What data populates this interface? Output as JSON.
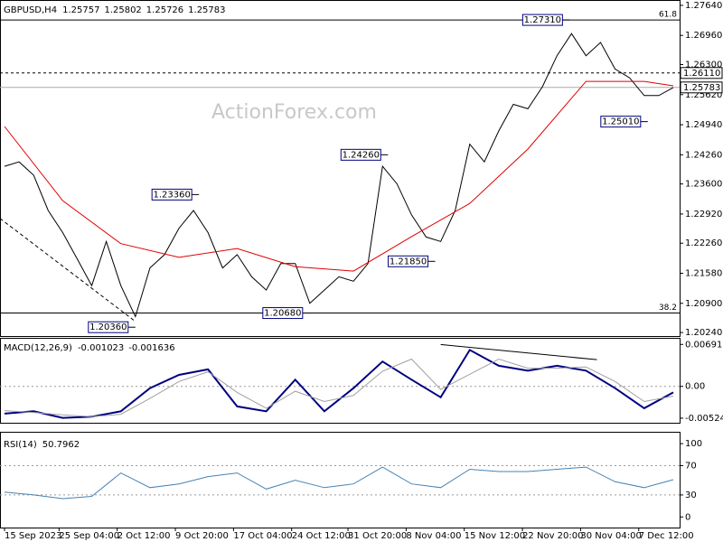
{
  "chart_data": [
    {
      "type": "line",
      "title": "GBPUSD,H4",
      "header_values": [
        1.25757,
        1.25802,
        1.25726,
        1.25783
      ],
      "watermark": "ActionForex.com",
      "xlim": [
        -2.5,
        371.5
      ],
      "x": [
        0,
        8,
        16,
        24,
        32,
        40,
        48,
        56,
        64,
        72,
        80,
        88,
        96,
        104,
        112,
        120,
        128,
        136,
        144,
        152,
        160,
        168,
        176,
        184,
        192,
        200,
        208,
        216,
        224,
        232,
        240,
        248,
        256,
        264,
        272,
        280,
        288,
        296,
        304,
        312,
        320,
        328,
        336,
        344,
        352,
        360,
        368
      ],
      "series": [
        {
          "color": "#000000",
          "width": 1,
          "values": [
            1.24,
            1.241,
            1.238,
            1.23,
            1.225,
            1.219,
            1.213,
            1.223,
            1.213,
            1.206,
            1.217,
            1.22,
            1.226,
            1.23,
            1.225,
            1.217,
            1.22,
            1.215,
            1.212,
            1.218,
            1.218,
            1.209,
            1.212,
            1.215,
            1.214,
            1.218,
            1.24,
            1.236,
            1.229,
            1.224,
            1.223,
            1.23,
            1.245,
            1.241,
            1.248,
            1.254,
            1.253,
            1.258,
            1.265,
            1.27,
            1.265,
            1.268,
            1.262,
            1.26,
            1.256,
            1.256,
            1.2578
          ]
        },
        {
          "color": "#e00000",
          "width": 1,
          "x": [
            0,
            32,
            64,
            96,
            128,
            160,
            192,
            224,
            256,
            288,
            320,
            352,
            368
          ],
          "values": [
            1.249,
            1.2322,
            1.2225,
            1.2194,
            1.2214,
            1.2173,
            1.2163,
            1.2241,
            1.2316,
            1.2439,
            1.2592,
            1.2592,
            1.2582
          ]
        }
      ],
      "ylim": [
        1.2016,
        1.2772
      ],
      "yticks": [
        {
          "value": 1.2764,
          "label": "1.27640"
        },
        {
          "value": 1.2696,
          "label": "1.26960"
        },
        {
          "value": 1.263,
          "label": "1.26300"
        },
        {
          "value": 1.2562,
          "label": "1.25620"
        },
        {
          "value": 1.2494,
          "label": "1.24940"
        },
        {
          "value": 1.2426,
          "label": "1.24260"
        },
        {
          "value": 1.236,
          "label": "1.23600"
        },
        {
          "value": 1.2292,
          "label": "1.22920"
        },
        {
          "value": 1.2226,
          "label": "1.22260"
        },
        {
          "value": 1.2158,
          "label": "1.21580"
        },
        {
          "value": 1.209,
          "label": "1.20900"
        },
        {
          "value": 1.2024,
          "label": "1.20240"
        }
      ],
      "fib_levels": [
        {
          "value": 1.2731,
          "fib": 61.8
        },
        {
          "value": 1.2068,
          "fib": 38.2
        }
      ],
      "price_levels": [
        {
          "value": 1.2611,
          "label": "1.26110",
          "style": "dotted"
        },
        {
          "value": 1.25783,
          "label": "1.25783",
          "style": "solid"
        }
      ],
      "annotations": [
        {
          "x": 311,
          "value": 1.2731,
          "label": "1.27310"
        },
        {
          "x": 354,
          "value": 1.2501,
          "label": "1.25010"
        },
        {
          "x": 211,
          "value": 1.2426,
          "label": "1.24260"
        },
        {
          "x": 107,
          "value": 1.2336,
          "label": "1.23360"
        },
        {
          "x": 237,
          "value": 1.2185,
          "label": "1.21850"
        },
        {
          "x": 72,
          "value": 1.2036,
          "label": "1.20360"
        },
        {
          "x": 168,
          "value": 1.2068,
          "label": "1.20680"
        }
      ],
      "trendlines": [
        {
          "x": [
            -2.5,
            72
          ],
          "values": [
            1.2282,
            1.2049
          ]
        }
      ]
    },
    {
      "type": "line",
      "title": "MACD(12,26,9)",
      "header_values": [
        -0.001023,
        -0.001636
      ],
      "x": [
        0,
        16,
        32,
        48,
        64,
        80,
        96,
        112,
        128,
        144,
        160,
        176,
        192,
        208,
        224,
        240,
        256,
        272,
        288,
        304,
        320,
        336,
        352,
        368
      ],
      "series": [
        {
          "color": "#000080",
          "width": 2,
          "values": [
            -0.0045,
            -0.0041,
            -0.0052,
            -0.005,
            -0.0041,
            -0.0003,
            0.0019,
            0.0028,
            -0.0033,
            -0.0041,
            0.0011,
            -0.0041,
            -0.0003,
            0.0041,
            0.0011,
            -0.0018,
            0.006,
            0.0034,
            0.0026,
            0.0034,
            0.0026,
            -0.0003,
            -0.0036,
            -0.001
          ]
        },
        {
          "color": "#a0a0a0",
          "width": 1,
          "values": [
            -0.004,
            -0.0043,
            -0.0047,
            -0.005,
            -0.0046,
            -0.002,
            0.0008,
            0.0024,
            -0.001,
            -0.0036,
            -0.0008,
            -0.0025,
            -0.0015,
            0.0025,
            0.0045,
            -0.0005,
            0.002,
            0.0045,
            0.003,
            0.003,
            0.0032,
            0.0008,
            -0.0025,
            -0.0016
          ]
        }
      ],
      "ylim": [
        -0.0057,
        0.0077
      ],
      "yticks": [
        0.006915,
        {
          "value": 0,
          "label": "0.00"
        },
        -0.005241
      ],
      "levels": [
        0
      ],
      "trendlines": [
        {
          "x": [
            240,
            326
          ],
          "values": [
            0.0069,
            0.0044
          ]
        }
      ]
    },
    {
      "type": "line",
      "title": "RSI(14)",
      "header_values": [
        50.7962
      ],
      "x": [
        0,
        16,
        32,
        48,
        64,
        80,
        96,
        112,
        128,
        144,
        160,
        176,
        192,
        208,
        224,
        240,
        256,
        272,
        288,
        304,
        320,
        336,
        352,
        368
      ],
      "series": [
        {
          "color": "#4682b4",
          "width": 1,
          "values": [
            34,
            30,
            25,
            28,
            60,
            40,
            45,
            55,
            60,
            38,
            50,
            40,
            45,
            68,
            45,
            40,
            65,
            62,
            62,
            65,
            68,
            48,
            40,
            50.8
          ]
        }
      ],
      "ylim": [
        -12,
        110
      ],
      "yticks": [
        100,
        70,
        30,
        0
      ],
      "levels": [
        70,
        30
      ],
      "xticks": [
        {
          "value": 0,
          "label": "15 Sep 2023"
        },
        {
          "value": 30,
          "label": "25 Sep 04:00"
        },
        {
          "value": 62,
          "label": "2 Oct 12:00"
        },
        {
          "value": 94,
          "label": "9 Oct 20:00"
        },
        {
          "value": 126,
          "label": "17 Oct 04:00"
        },
        {
          "value": 158,
          "label": "24 Oct 12:00"
        },
        {
          "value": 189,
          "label": "31 Oct 20:00"
        },
        {
          "value": 221,
          "label": "8 Nov 04:00"
        },
        {
          "value": 253,
          "label": "15 Nov 12:00"
        },
        {
          "value": 285,
          "label": "22 Nov 20:00"
        },
        {
          "value": 317,
          "label": "30 Nov 04:00"
        },
        {
          "value": 349,
          "label": "7 Dec 12:00"
        }
      ]
    }
  ]
}
